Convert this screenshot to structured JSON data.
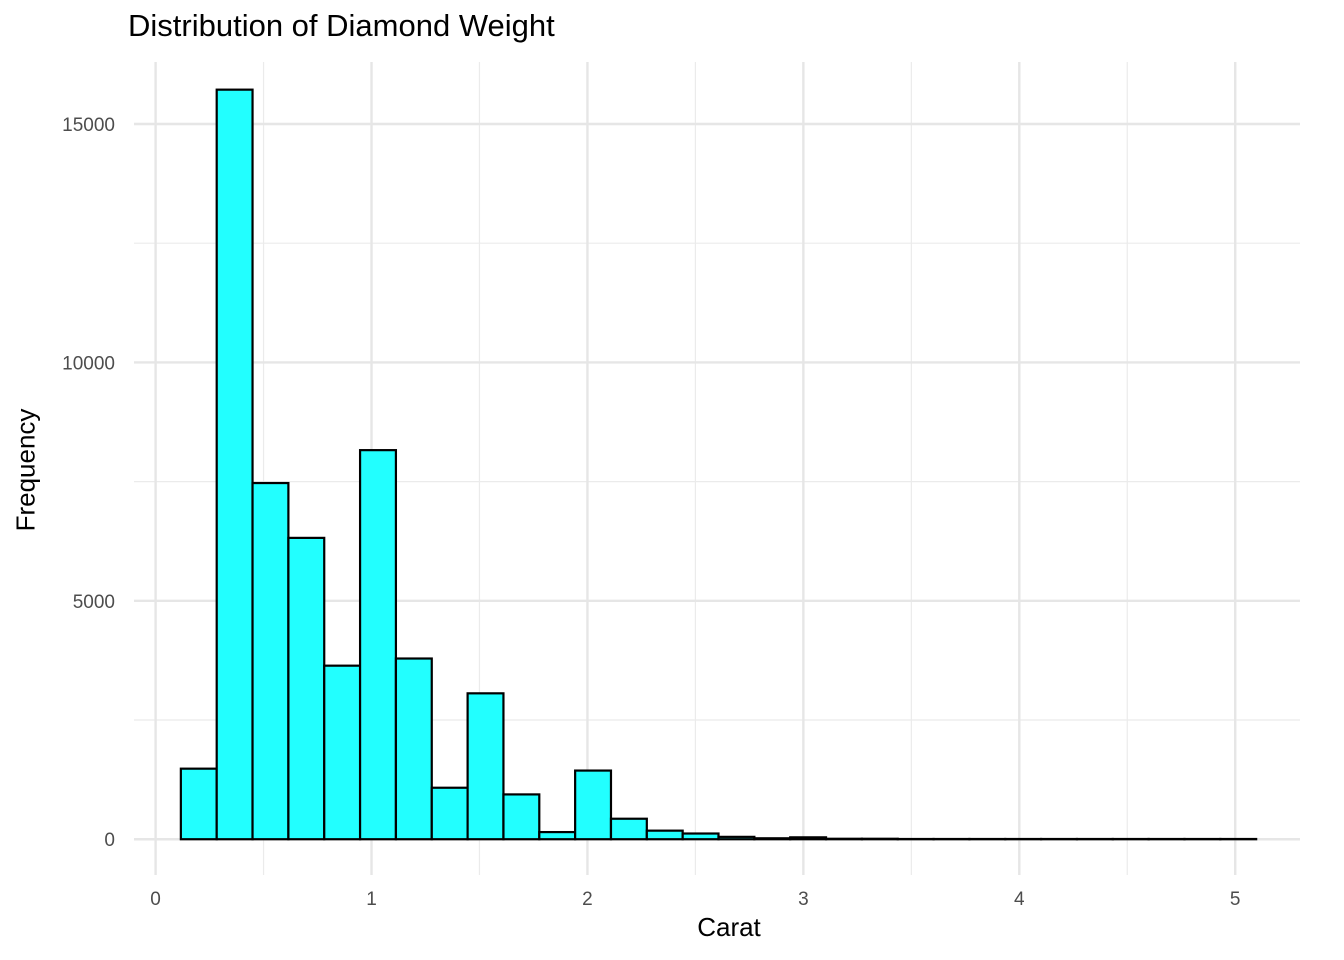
{
  "chart_data": {
    "type": "bar",
    "title": "Distribution of Diamond Weight",
    "xlabel": "Carat",
    "ylabel": "Frequency",
    "xlim": [
      -0.1,
      5.3
    ],
    "ylim": [
      -750,
      16300
    ],
    "x_ticks": [
      0,
      1,
      2,
      3,
      4,
      5
    ],
    "y_ticks": [
      0,
      5000,
      10000,
      15000
    ],
    "grid": true,
    "bin_width": 0.166,
    "bin_start": 0.117,
    "values": [
      1480,
      15720,
      7470,
      6320,
      3640,
      8160,
      3790,
      1080,
      3060,
      940,
      150,
      1440,
      430,
      180,
      120,
      50,
      20,
      40,
      10,
      10,
      5,
      5,
      5,
      5,
      5,
      5,
      5,
      5,
      5,
      5
    ],
    "fill_color": "#22ffff",
    "edge_color": "#000000"
  }
}
